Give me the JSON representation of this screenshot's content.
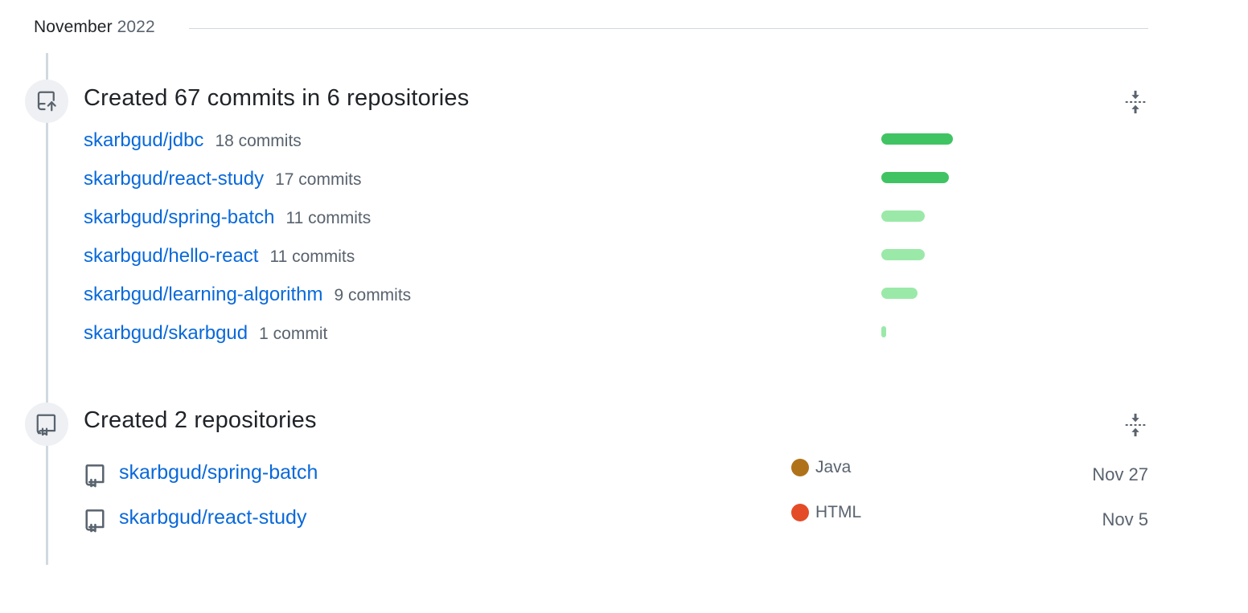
{
  "month": {
    "name": "November",
    "year": "2022"
  },
  "commits_section": {
    "title": "Created 67 commits in 6 repositories",
    "max_commits": 18,
    "repos": [
      {
        "name": "skarbgud/jdbc",
        "count_label": "18 commits",
        "commits": 18,
        "shade": "dark"
      },
      {
        "name": "skarbgud/react-study",
        "count_label": "17 commits",
        "commits": 17,
        "shade": "dark"
      },
      {
        "name": "skarbgud/spring-batch",
        "count_label": "11 commits",
        "commits": 11,
        "shade": "light"
      },
      {
        "name": "skarbgud/hello-react",
        "count_label": "11 commits",
        "commits": 11,
        "shade": "light"
      },
      {
        "name": "skarbgud/learning-algorithm",
        "count_label": "9 commits",
        "commits": 9,
        "shade": "light"
      },
      {
        "name": "skarbgud/skarbgud",
        "count_label": "1 commit",
        "commits": 1,
        "shade": "light"
      }
    ]
  },
  "repos_section": {
    "title": "Created 2 repositories",
    "repos": [
      {
        "name": "skarbgud/spring-batch",
        "language": "Java",
        "language_color": "#b07219",
        "date": "Nov 27"
      },
      {
        "name": "skarbgud/react-study",
        "language": "HTML",
        "language_color": "#e34c26",
        "date": "Nov 5"
      }
    ]
  },
  "icons": {
    "commits_badge": "repo-push-icon",
    "repos_badge": "repo-icon",
    "collapse": "fold-icon"
  }
}
